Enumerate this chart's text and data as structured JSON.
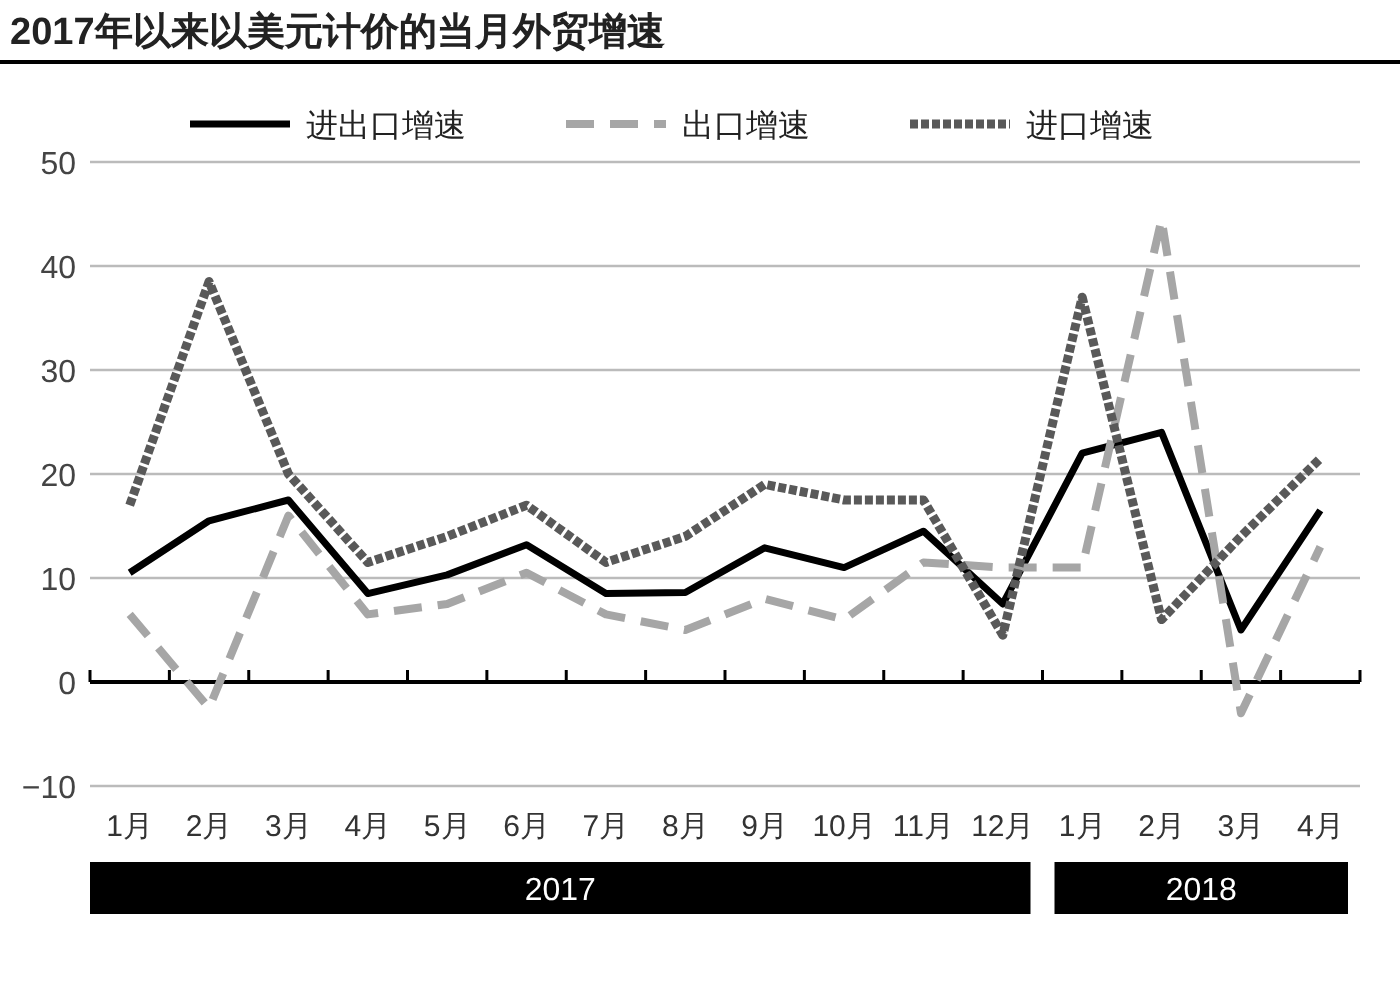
{
  "chart_data": {
    "type": "line",
    "title": "2017年以来以美元计价的当月外贸增速",
    "categories": [
      "1月",
      "2月",
      "3月",
      "4月",
      "5月",
      "6月",
      "7月",
      "8月",
      "9月",
      "10月",
      "11月",
      "12月",
      "1月",
      "2月",
      "3月",
      "4月"
    ],
    "series": [
      {
        "name": "进出口增速",
        "color": "#000000",
        "line_style": "solid",
        "values": [
          10.5,
          15.5,
          17.5,
          8.5,
          10.3,
          13.2,
          8.5,
          8.6,
          12.9,
          11,
          14.5,
          7.5,
          22,
          24,
          5,
          16.5
        ]
      },
      {
        "name": "出口增速",
        "color": "#a6a6a6",
        "line_style": "dashed",
        "values": [
          6.5,
          -2.5,
          16,
          6.5,
          7.5,
          10.5,
          6.5,
          5,
          8,
          6,
          11.5,
          11,
          11,
          44.5,
          -3,
          13
        ]
      },
      {
        "name": "进口增速",
        "color": "#595959",
        "line_style": "dotted",
        "values": [
          17,
          38.5,
          20,
          11.5,
          14,
          17,
          11.5,
          14,
          19,
          17.5,
          17.5,
          4.5,
          37,
          6,
          14,
          21.5
        ]
      }
    ],
    "ylim": [
      -10,
      50
    ],
    "yticks": [
      -10,
      0,
      10,
      20,
      30,
      40,
      50
    ],
    "grid": "y",
    "legend": "top",
    "marker": "none",
    "annotations": [
      "2017",
      "2018"
    ]
  }
}
